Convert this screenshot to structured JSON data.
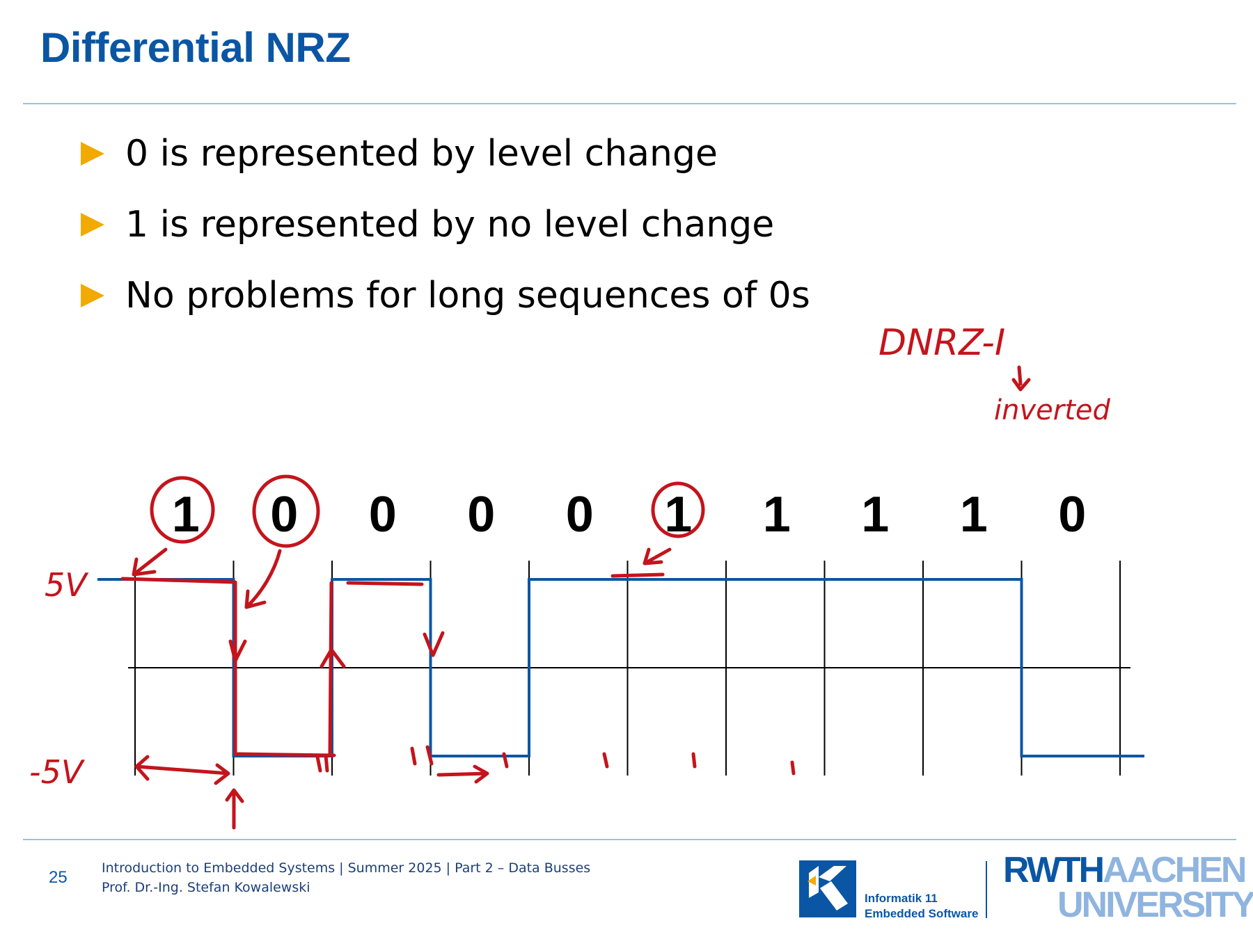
{
  "slide": {
    "title": "Differential NRZ"
  },
  "bullets": [
    "0 is represented by level change",
    "1 is represented by no level change",
    "No problems for long sequences of 0s"
  ],
  "diagram": {
    "bits": [
      "1",
      "0",
      "0",
      "0",
      "0",
      "1",
      "1",
      "1",
      "1",
      "0"
    ],
    "levels": [
      1,
      -1,
      1,
      -1,
      1,
      1,
      1,
      1,
      1,
      -1
    ],
    "colors": {
      "signal": "#0b56a4",
      "grid": "#000000",
      "annotation": "#c4141c"
    }
  },
  "annotations": {
    "high_level": "5V",
    "low_level": "-5V",
    "variant": "DNRZ-I",
    "variant_note": "inverted"
  },
  "footer": {
    "page_number": "25",
    "course_line": "Introduction to Embedded Systems | Summer 2025 | Part 2 – Data Busses",
    "author_line": "Prof. Dr.-Ing. Stefan Kowalewski",
    "institute_line1": "Informatik 11",
    "institute_line2": "Embedded Software",
    "university_line1a": "RWTH",
    "university_line1b": "AACHEN",
    "university_line2": "UNIVERSITY"
  }
}
